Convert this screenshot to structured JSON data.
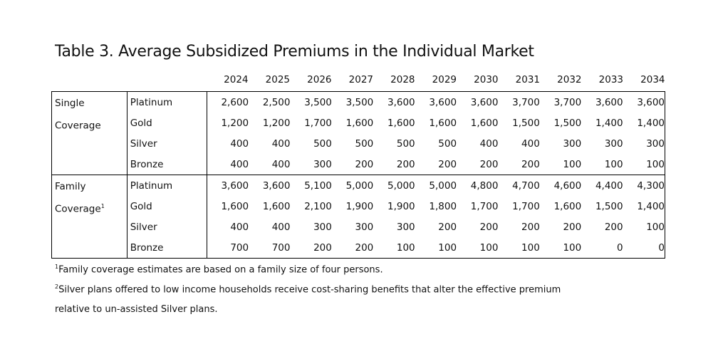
{
  "title": "Table 3. Average Subsidized Premiums in the Individual Market",
  "years": [
    "2024",
    "2025",
    "2026",
    "2027",
    "2028",
    "2029",
    "2030",
    "2031",
    "2032",
    "2033",
    "2034"
  ],
  "groups": [
    {
      "label_line1": "Single",
      "label_line2": "Coverage",
      "sup": "",
      "rows": [
        {
          "plan": "Platinum",
          "values": [
            "2,600",
            "2,500",
            "3,500",
            "3,500",
            "3,600",
            "3,600",
            "3,600",
            "3,700",
            "3,700",
            "3,600",
            "3,600"
          ]
        },
        {
          "plan": "Gold",
          "values": [
            "1,200",
            "1,200",
            "1,700",
            "1,600",
            "1,600",
            "1,600",
            "1,600",
            "1,500",
            "1,500",
            "1,400",
            "1,400"
          ]
        },
        {
          "plan": "Silver",
          "values": [
            "400",
            "400",
            "500",
            "500",
            "500",
            "500",
            "400",
            "400",
            "300",
            "300",
            "300"
          ]
        },
        {
          "plan": "Bronze",
          "values": [
            "400",
            "400",
            "300",
            "200",
            "200",
            "200",
            "200",
            "200",
            "100",
            "100",
            "100"
          ]
        }
      ]
    },
    {
      "label_line1": "Family",
      "label_line2": "Coverage",
      "sup": "1",
      "rows": [
        {
          "plan": "Platinum",
          "values": [
            "3,600",
            "3,600",
            "5,100",
            "5,000",
            "5,000",
            "5,000",
            "4,800",
            "4,700",
            "4,600",
            "4,400",
            "4,300"
          ]
        },
        {
          "plan": "Gold",
          "values": [
            "1,600",
            "1,600",
            "2,100",
            "1,900",
            "1,900",
            "1,800",
            "1,700",
            "1,700",
            "1,600",
            "1,500",
            "1,400"
          ]
        },
        {
          "plan": "Silver",
          "values": [
            "400",
            "400",
            "300",
            "300",
            "300",
            "200",
            "200",
            "200",
            "200",
            "200",
            "100"
          ]
        },
        {
          "plan": "Bronze",
          "values": [
            "700",
            "700",
            "200",
            "200",
            "100",
            "100",
            "100",
            "100",
            "100",
            "0",
            "0"
          ]
        }
      ]
    }
  ],
  "footnotes": [
    {
      "mark": "1",
      "text": "Family coverage estimates are based on a family size of four persons."
    },
    {
      "mark": "2",
      "text": "Silver plans offered to low income households receive cost-sharing benefits that alter the effective premium"
    },
    {
      "mark": "",
      "text": "relative to un-assisted Silver plans."
    }
  ]
}
